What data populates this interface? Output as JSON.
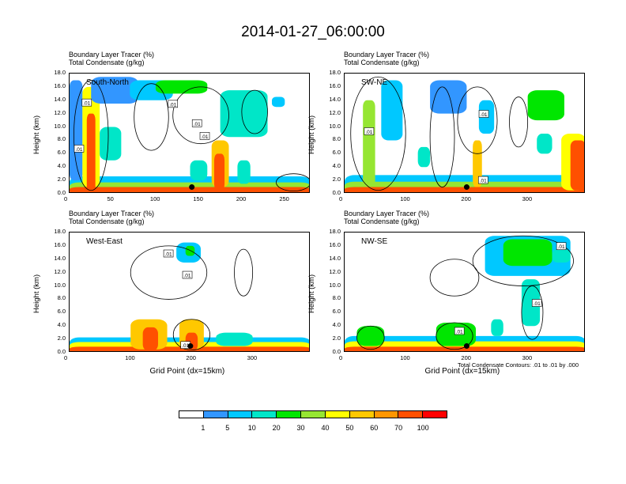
{
  "title": "2014-01-27_06:00:00",
  "chart_data": {
    "type": "heatmap",
    "title": "2014-01-27_06:00:00",
    "fill_variable": "Boundary Layer Tracer    (%)",
    "contour_variable": "Total Condensate    (g/kg)",
    "contour_note": "Total Condensate Contours: .01 to .01 by .000",
    "colorbar": {
      "levels": [
        "1",
        "5",
        "10",
        "20",
        "30",
        "40",
        "50",
        "60",
        "70",
        "100"
      ],
      "colors": [
        "#ffffff",
        "#3296ff",
        "#00c8ff",
        "#00e6c8",
        "#00e600",
        "#96e632",
        "#ffff00",
        "#ffc800",
        "#ff9600",
        "#ff5000",
        "#ff0000"
      ]
    },
    "panels": [
      {
        "name": "South-North",
        "line1": "Boundary Layer Tracer    (%)",
        "line2": "Total Condensate    (g/kg)",
        "ylabel": "Height (km)",
        "xlabel": "",
        "xlim": [
          0,
          280
        ],
        "ylim": [
          0,
          18
        ],
        "xticks": [
          "0",
          "50",
          "100",
          "150",
          "200",
          "250"
        ],
        "xtick_values": [
          0,
          50,
          100,
          150,
          200,
          250
        ],
        "yticks": [
          "0.0",
          "2.0",
          "4.0",
          "6.0",
          "8.0",
          "10.0",
          "12.0",
          "14.0",
          "16.0",
          "18.0"
        ],
        "contour_labels": [
          {
            "text": ".01",
            "x": 20,
            "y": 13.6
          },
          {
            "text": ".01",
            "x": 11,
            "y": 6.7
          },
          {
            "text": ".01",
            "x": 148,
            "y": 10.5
          },
          {
            "text": ".01",
            "x": 157,
            "y": 8.6
          },
          {
            "text": ".01",
            "x": 120,
            "y": 13.4
          }
        ],
        "marker": {
          "x": 142,
          "y": 1.0
        },
        "blobs": [
          {
            "x": 0,
            "x2": 280,
            "y": 0,
            "y2": 2.6,
            "level": 2
          },
          {
            "x": 0,
            "x2": 280,
            "y": 0,
            "y2": 1.7,
            "level": 5
          },
          {
            "x": 0,
            "x2": 280,
            "y": 0,
            "y2": 1.0,
            "level": 9
          },
          {
            "x": 0,
            "x2": 15,
            "y": 2.0,
            "y2": 17.0,
            "level": 1
          },
          {
            "x": 15,
            "x2": 35,
            "y": 1.0,
            "y2": 16.0,
            "level": 6
          },
          {
            "x": 20,
            "x2": 30,
            "y": 0,
            "y2": 12.0,
            "level": 9
          },
          {
            "x": 25,
            "x2": 80,
            "y": 13.5,
            "y2": 17.5,
            "level": 1
          },
          {
            "x": 35,
            "x2": 60,
            "y": 5.0,
            "y2": 10.0,
            "level": 3
          },
          {
            "x": 70,
            "x2": 120,
            "y": 14.0,
            "y2": 17.0,
            "level": 2
          },
          {
            "x": 100,
            "x2": 160,
            "y": 15.0,
            "y2": 17.0,
            "level": 4
          },
          {
            "x": 165,
            "x2": 185,
            "y": 1.0,
            "y2": 8.0,
            "level": 7
          },
          {
            "x": 168,
            "x2": 180,
            "y": 0.5,
            "y2": 6.0,
            "level": 9
          },
          {
            "x": 175,
            "x2": 230,
            "y": 8.5,
            "y2": 15.5,
            "level": 3
          },
          {
            "x": 235,
            "x2": 250,
            "y": 13.0,
            "y2": 14.5,
            "level": 2
          },
          {
            "x": 140,
            "x2": 160,
            "y": 2.0,
            "y2": 5.0,
            "level": 3
          },
          {
            "x": 195,
            "x2": 210,
            "y": 1.5,
            "y2": 5.0,
            "level": 3
          }
        ],
        "contours": [
          {
            "x": 5,
            "x2": 45,
            "y": 0.5,
            "y2": 17.0
          },
          {
            "x": 75,
            "x2": 115,
            "y": 6.5,
            "y2": 16.5
          },
          {
            "x": 120,
            "x2": 185,
            "y": 7.5,
            "y2": 16.0
          },
          {
            "x": 200,
            "x2": 230,
            "y": 9.0,
            "y2": 15.5
          },
          {
            "x": 240,
            "x2": 280,
            "y": 0.4,
            "y2": 3.0
          }
        ]
      },
      {
        "name": "SW-NE",
        "line1": "Boundary Layer Tracer    (%)",
        "line2": "Total Condensate    (g/kg)",
        "ylabel": "Height (km)",
        "xlabel": "",
        "xlim": [
          0,
          395
        ],
        "ylim": [
          0,
          18
        ],
        "xticks": [
          "0",
          "100",
          "200",
          "300"
        ],
        "xtick_values": [
          0,
          100,
          200,
          300
        ],
        "yticks": [
          "0.0",
          "2.0",
          "4.0",
          "6.0",
          "8.0",
          "10.0",
          "12.0",
          "14.0",
          "16.0",
          "18.0"
        ],
        "contour_labels": [
          {
            "text": ".01",
            "x": 40,
            "y": 9.3
          },
          {
            "text": ".01",
            "x": 228,
            "y": 11.9
          },
          {
            "text": ".01",
            "x": 227,
            "y": 2.0
          }
        ],
        "marker": {
          "x": 200,
          "y": 1.0
        },
        "blobs": [
          {
            "x": 0,
            "x2": 395,
            "y": 0,
            "y2": 2.8,
            "level": 2
          },
          {
            "x": 0,
            "x2": 395,
            "y": 0,
            "y2": 1.8,
            "level": 5
          },
          {
            "x": 0,
            "x2": 395,
            "y": 0,
            "y2": 1.0,
            "level": 9
          },
          {
            "x": 30,
            "x2": 50,
            "y": 1.0,
            "y2": 14.0,
            "level": 5
          },
          {
            "x": 60,
            "x2": 95,
            "y": 8.0,
            "y2": 17.0,
            "level": 2
          },
          {
            "x": 140,
            "x2": 200,
            "y": 12.0,
            "y2": 17.0,
            "level": 1
          },
          {
            "x": 210,
            "x2": 225,
            "y": 1.0,
            "y2": 8.0,
            "level": 7
          },
          {
            "x": 220,
            "x2": 245,
            "y": 9.0,
            "y2": 14.0,
            "level": 2
          },
          {
            "x": 300,
            "x2": 360,
            "y": 11.0,
            "y2": 15.5,
            "level": 4
          },
          {
            "x": 315,
            "x2": 340,
            "y": 6.0,
            "y2": 9.0,
            "level": 3
          },
          {
            "x": 355,
            "x2": 395,
            "y": 0.5,
            "y2": 9.0,
            "level": 6
          },
          {
            "x": 370,
            "x2": 395,
            "y": 0.5,
            "y2": 8.0,
            "level": 9
          },
          {
            "x": 120,
            "x2": 140,
            "y": 4.0,
            "y2": 7.0,
            "level": 3
          }
        ],
        "contours": [
          {
            "x": 10,
            "x2": 100,
            "y": 0.5,
            "y2": 17.5
          },
          {
            "x": 140,
            "x2": 180,
            "y": 1.0,
            "y2": 16.0
          },
          {
            "x": 185,
            "x2": 250,
            "y": 6.0,
            "y2": 16.0
          },
          {
            "x": 270,
            "x2": 300,
            "y": 7.0,
            "y2": 14.5
          }
        ]
      },
      {
        "name": "West-East",
        "line1": "Boundary Layer Tracer    (%)",
        "line2": "Total Condensate    (g/kg)",
        "ylabel": "Height (km)",
        "xlabel": "Grid Point (dx=15km)",
        "xlim": [
          0,
          395
        ],
        "ylim": [
          0,
          18
        ],
        "xticks": [
          "0",
          "100",
          "200",
          "300"
        ],
        "xtick_values": [
          0,
          100,
          200,
          300
        ],
        "yticks": [
          "0.0",
          "2.0",
          "4.0",
          "6.0",
          "8.0",
          "10.0",
          "12.0",
          "14.0",
          "16.0",
          "18.0"
        ],
        "contour_labels": [
          {
            "text": ".01",
            "x": 162,
            "y": 14.8
          },
          {
            "text": ".01",
            "x": 193,
            "y": 11.6
          },
          {
            "text": ".01",
            "x": 190,
            "y": 1.1
          }
        ],
        "marker": {
          "x": 198,
          "y": 1.0
        },
        "blobs": [
          {
            "x": 0,
            "x2": 395,
            "y": 0,
            "y2": 2.3,
            "level": 2
          },
          {
            "x": 0,
            "x2": 395,
            "y": 0,
            "y2": 1.6,
            "level": 6
          },
          {
            "x": 0,
            "x2": 395,
            "y": 0,
            "y2": 0.9,
            "level": 9
          },
          {
            "x": 100,
            "x2": 160,
            "y": 0.5,
            "y2": 5.0,
            "level": 7
          },
          {
            "x": 120,
            "x2": 145,
            "y": 0.3,
            "y2": 3.8,
            "level": 9
          },
          {
            "x": 180,
            "x2": 220,
            "y": 0.5,
            "y2": 5.0,
            "level": 7
          },
          {
            "x": 190,
            "x2": 210,
            "y": 0.3,
            "y2": 3.0,
            "level": 9
          },
          {
            "x": 175,
            "x2": 215,
            "y": 13.5,
            "y2": 16.5,
            "level": 2
          },
          {
            "x": 190,
            "x2": 205,
            "y": 14.5,
            "y2": 16.0,
            "level": 4
          },
          {
            "x": 240,
            "x2": 300,
            "y": 1.0,
            "y2": 3.0,
            "level": 3
          }
        ],
        "contours": [
          {
            "x": 100,
            "x2": 225,
            "y": 8.0,
            "y2": 16.0
          },
          {
            "x": 270,
            "x2": 300,
            "y": 8.5,
            "y2": 15.5
          },
          {
            "x": 170,
            "x2": 230,
            "y": 0.4,
            "y2": 5.0
          }
        ]
      },
      {
        "name": "NW-SE",
        "line1": "Boundary Layer Tracer    (%)",
        "line2": "Total Condensate    (g/kg)",
        "ylabel": "Height (km)",
        "xlabel": "Grid Point (dx=15km)",
        "xlim": [
          0,
          395
        ],
        "ylim": [
          0,
          18
        ],
        "xticks": [
          "0",
          "100",
          "200",
          "300"
        ],
        "xtick_values": [
          0,
          100,
          200,
          300
        ],
        "yticks": [
          "0.0",
          "2.0",
          "4.0",
          "6.0",
          "8.0",
          "10.0",
          "12.0",
          "14.0",
          "16.0",
          "18.0"
        ],
        "contour_labels": [
          {
            "text": ".01",
            "x": 355,
            "y": 15.9
          },
          {
            "text": ".01",
            "x": 315,
            "y": 7.4
          },
          {
            "text": ".01",
            "x": 188,
            "y": 3.2
          }
        ],
        "marker": {
          "x": 200,
          "y": 1.0
        },
        "blobs": [
          {
            "x": 0,
            "x2": 395,
            "y": 0,
            "y2": 2.5,
            "level": 2
          },
          {
            "x": 0,
            "x2": 395,
            "y": 0,
            "y2": 1.7,
            "level": 6
          },
          {
            "x": 0,
            "x2": 395,
            "y": 0,
            "y2": 0.9,
            "level": 9
          },
          {
            "x": 20,
            "x2": 65,
            "y": 1.0,
            "y2": 4.0,
            "level": 4
          },
          {
            "x": 150,
            "x2": 215,
            "y": 1.0,
            "y2": 4.5,
            "level": 4
          },
          {
            "x": 230,
            "x2": 370,
            "y": 11.5,
            "y2": 17.5,
            "level": 2
          },
          {
            "x": 260,
            "x2": 340,
            "y": 13.0,
            "y2": 17.0,
            "level": 4
          },
          {
            "x": 290,
            "x2": 320,
            "y": 4.0,
            "y2": 11.0,
            "level": 3
          },
          {
            "x": 340,
            "x2": 370,
            "y": 13.5,
            "y2": 15.5,
            "level": 3
          },
          {
            "x": 240,
            "x2": 260,
            "y": 2.5,
            "y2": 5.0,
            "level": 3
          }
        ],
        "contours": [
          {
            "x": 140,
            "x2": 220,
            "y": 8.5,
            "y2": 14.0
          },
          {
            "x": 210,
            "x2": 375,
            "y": 10.0,
            "y2": 17.5
          },
          {
            "x": 290,
            "x2": 325,
            "y": 2.0,
            "y2": 10.0
          },
          {
            "x": 20,
            "x2": 65,
            "y": 0.5,
            "y2": 4.0
          },
          {
            "x": 150,
            "x2": 210,
            "y": 0.5,
            "y2": 4.5
          }
        ]
      }
    ]
  }
}
